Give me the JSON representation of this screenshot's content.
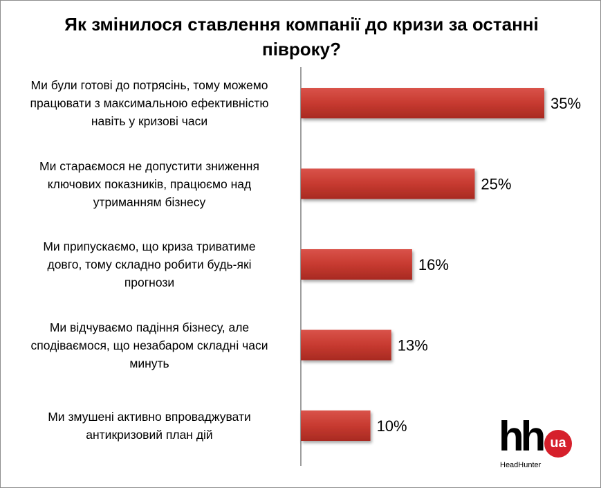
{
  "chart_data": {
    "type": "bar",
    "orientation": "horizontal",
    "title": [
      "Як змінилося ставлення компанії до кризи за останні",
      "півроку?"
    ],
    "categories": [
      [
        "Ми були готові до потрясінь, тому можемо",
        "працювати з максимальною ефективністю",
        "навіть у кризові часи"
      ],
      [
        "Ми стараємося не допустити зниження",
        "ключових показників, працюємо над",
        "утриманням бізнесу"
      ],
      [
        "Ми припускаємо, що криза триватиме",
        "довго, тому складно робити будь-які",
        "прогнози"
      ],
      [
        "Ми відчуваємо падіння бізнесу, але",
        "сподіваємося, що незабаром складні часи",
        "минуть"
      ],
      [
        "Ми змушені активно впроваджувати",
        "антикризовий план дій"
      ]
    ],
    "values": [
      35,
      25,
      16,
      13,
      10
    ],
    "data_labels": [
      "35%",
      "25%",
      "16%",
      "13%",
      "10%"
    ],
    "xlim": [
      0,
      35
    ],
    "grid": false,
    "bar_color": "#c0392b"
  },
  "logo": {
    "mark": "hh",
    "badge": "ua",
    "subtitle": "HeadHunter",
    "badge_color": "#d6202b"
  }
}
